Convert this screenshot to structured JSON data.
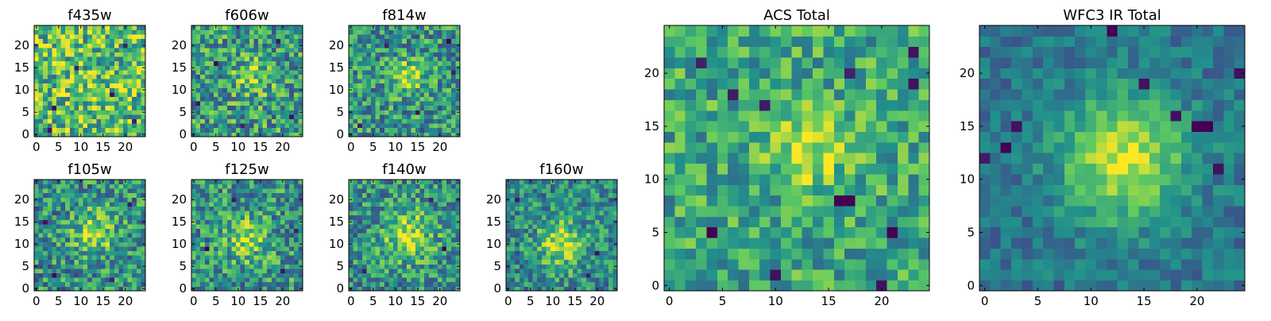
{
  "figure": {
    "colormap": "viridis",
    "colormap_stops": [
      "#440154",
      "#3b528b",
      "#21918c",
      "#5ec962",
      "#fde725"
    ],
    "image_size": [
      25,
      25
    ]
  },
  "chart_data": [
    {
      "type": "heatmap",
      "title": "f435w",
      "xlim": [
        0,
        24
      ],
      "ylim": [
        0,
        24
      ],
      "xticks": [
        0,
        5,
        10,
        15,
        20
      ],
      "yticks": [
        0,
        5,
        10,
        15,
        20
      ],
      "xtick_labels": [
        "0",
        "5",
        "10",
        "15",
        "20"
      ],
      "ytick_labels": [
        "0",
        "5",
        "10",
        "15",
        "20"
      ],
      "source": {
        "center": [
          12,
          12
        ],
        "sigma": 6.0,
        "peak": 0.05,
        "noise": 0.34,
        "base": 0.68,
        "seed": 11
      },
      "outliers": [
        [
          4,
          6,
          0.0
        ],
        [
          17,
          9,
          0.05
        ],
        [
          9,
          15,
          0.08
        ],
        [
          20,
          20,
          0.1
        ],
        [
          3,
          1,
          0.05
        ],
        [
          22,
          3,
          0.1
        ]
      ]
    },
    {
      "type": "heatmap",
      "title": "f606w",
      "xlim": [
        0,
        24
      ],
      "ylim": [
        0,
        24
      ],
      "xticks": [
        0,
        5,
        10,
        15,
        20
      ],
      "yticks": [
        0,
        5,
        10,
        15,
        20
      ],
      "xtick_labels": [
        "0",
        "5",
        "10",
        "15",
        "20"
      ],
      "ytick_labels": [
        "0",
        "5",
        "10",
        "15",
        "20"
      ],
      "source": {
        "center": [
          13,
          13
        ],
        "sigma": 2.8,
        "peak": 0.28,
        "noise": 0.32,
        "base": 0.55,
        "seed": 23
      },
      "outliers": [
        [
          5,
          16,
          0.0
        ],
        [
          22,
          4,
          0.05
        ],
        [
          1,
          7,
          0.05
        ],
        [
          11,
          2,
          0.1
        ],
        [
          19,
          21,
          0.08
        ]
      ]
    },
    {
      "type": "heatmap",
      "title": "f814w",
      "xlim": [
        0,
        24
      ],
      "ylim": [
        0,
        24
      ],
      "xticks": [
        0,
        5,
        10,
        15,
        20
      ],
      "yticks": [
        0,
        5,
        10,
        15,
        20
      ],
      "xtick_labels": [
        "0",
        "5",
        "10",
        "15",
        "20"
      ],
      "ytick_labels": [
        "0",
        "5",
        "10",
        "15",
        "20"
      ],
      "source": {
        "center": [
          13,
          13
        ],
        "sigma": 2.6,
        "peak": 0.38,
        "noise": 0.3,
        "base": 0.52,
        "seed": 37
      },
      "outliers": [
        [
          22,
          21,
          0.0
        ],
        [
          15,
          5,
          0.05
        ],
        [
          2,
          2,
          0.08
        ],
        [
          23,
          14,
          0.1
        ],
        [
          8,
          20,
          0.1
        ]
      ]
    },
    {
      "type": "heatmap",
      "title": "f105w",
      "xlim": [
        0,
        24
      ],
      "ylim": [
        0,
        24
      ],
      "xticks": [
        0,
        5,
        10,
        15,
        20
      ],
      "yticks": [
        0,
        5,
        10,
        15,
        20
      ],
      "xtick_labels": [
        "0",
        "5",
        "10",
        "15",
        "20"
      ],
      "ytick_labels": [
        "0",
        "5",
        "10",
        "15",
        "20"
      ],
      "source": {
        "center": [
          13,
          13
        ],
        "sigma": 3.4,
        "peak": 0.36,
        "noise": 0.3,
        "base": 0.5,
        "seed": 41
      },
      "outliers": [
        [
          4,
          3,
          0.0
        ],
        [
          2,
          15,
          0.05
        ],
        [
          21,
          19,
          0.08
        ],
        [
          17,
          2,
          0.1
        ]
      ]
    },
    {
      "type": "heatmap",
      "title": "f125w",
      "xlim": [
        0,
        24
      ],
      "ylim": [
        0,
        24
      ],
      "xticks": [
        0,
        5,
        10,
        15,
        20
      ],
      "yticks": [
        0,
        5,
        10,
        15,
        20
      ],
      "xtick_labels": [
        "0",
        "5",
        "10",
        "15",
        "20"
      ],
      "ytick_labels": [
        "0",
        "5",
        "10",
        "15",
        "20"
      ],
      "source": {
        "center": [
          12,
          11
        ],
        "sigma": 3.2,
        "peak": 0.34,
        "noise": 0.3,
        "base": 0.52,
        "seed": 53
      },
      "outliers": [
        [
          3,
          9,
          0.0
        ],
        [
          20,
          4,
          0.05
        ],
        [
          9,
          20,
          0.08
        ],
        [
          23,
          13,
          0.1
        ]
      ]
    },
    {
      "type": "heatmap",
      "title": "f140w",
      "xlim": [
        0,
        24
      ],
      "ylim": [
        0,
        24
      ],
      "xticks": [
        0,
        5,
        10,
        15,
        20
      ],
      "yticks": [
        0,
        5,
        10,
        15,
        20
      ],
      "xtick_labels": [
        "0",
        "5",
        "10",
        "15",
        "20"
      ],
      "ytick_labels": [
        "0",
        "5",
        "10",
        "15",
        "20"
      ],
      "source": {
        "center": [
          13,
          12
        ],
        "sigma": 4.0,
        "peak": 0.38,
        "noise": 0.28,
        "base": 0.5,
        "seed": 67
      },
      "outliers": [
        [
          21,
          9,
          0.0
        ],
        [
          3,
          4,
          0.08
        ],
        [
          18,
          20,
          0.1
        ]
      ]
    },
    {
      "type": "heatmap",
      "title": "f160w",
      "xlim": [
        0,
        24
      ],
      "ylim": [
        0,
        24
      ],
      "xticks": [
        0,
        5,
        10,
        15,
        20
      ],
      "yticks": [
        0,
        5,
        10,
        15,
        20
      ],
      "xtick_labels": [
        "0",
        "5",
        "10",
        "15",
        "20"
      ],
      "ytick_labels": [
        "0",
        "5",
        "10",
        "15",
        "20"
      ],
      "source": {
        "center": [
          12,
          10
        ],
        "sigma": 3.6,
        "peak": 0.42,
        "noise": 0.26,
        "base": 0.48,
        "seed": 79
      },
      "outliers": [
        [
          20,
          8,
          0.05
        ],
        [
          2,
          20,
          0.08
        ],
        [
          18,
          3,
          0.1
        ]
      ]
    },
    {
      "type": "heatmap",
      "title": "ACS Total",
      "xlim": [
        0,
        24
      ],
      "ylim": [
        0,
        24
      ],
      "xticks": [
        0,
        5,
        10,
        15,
        20
      ],
      "yticks": [
        0,
        5,
        10,
        15,
        20
      ],
      "xtick_labels": [
        "0",
        "5",
        "10",
        "15",
        "20"
      ],
      "ytick_labels": [
        "0",
        "5",
        "10",
        "15",
        "20"
      ],
      "source": {
        "center": [
          13,
          13
        ],
        "sigma": 2.6,
        "peak": 0.34,
        "noise": 0.24,
        "base": 0.6,
        "seed": 91
      },
      "outliers": [
        [
          16,
          8,
          0.0
        ],
        [
          17,
          8,
          0.0
        ],
        [
          4,
          5,
          0.0
        ],
        [
          10,
          1,
          0.05
        ],
        [
          21,
          5,
          0.0
        ],
        [
          20,
          0,
          0.05
        ],
        [
          6,
          18,
          0.08
        ],
        [
          9,
          17,
          0.08
        ],
        [
          23,
          19,
          0.05
        ],
        [
          23,
          22,
          0.05
        ],
        [
          3,
          21,
          0.1
        ],
        [
          17,
          20,
          0.1
        ]
      ]
    },
    {
      "type": "heatmap",
      "title": "WFC3 IR Total",
      "xlim": [
        0,
        24
      ],
      "ylim": [
        0,
        24
      ],
      "xticks": [
        0,
        5,
        10,
        15,
        20
      ],
      "yticks": [
        0,
        5,
        10,
        15,
        20
      ],
      "xtick_labels": [
        "0",
        "5",
        "10",
        "15",
        "20"
      ],
      "ytick_labels": [
        "0",
        "5",
        "10",
        "15",
        "20"
      ],
      "source": {
        "center": [
          13,
          12
        ],
        "sigma": 4.2,
        "peak": 0.55,
        "noise": 0.14,
        "base": 0.38,
        "seed": 103
      },
      "outliers": [
        [
          2,
          13,
          0.0
        ],
        [
          3,
          15,
          0.05
        ],
        [
          12,
          24,
          0.0
        ],
        [
          20,
          15,
          0.0
        ],
        [
          21,
          15,
          0.0
        ],
        [
          18,
          16,
          0.05
        ],
        [
          22,
          11,
          0.05
        ],
        [
          24,
          20,
          0.05
        ],
        [
          15,
          19,
          0.05
        ],
        [
          0,
          12,
          0.08
        ]
      ]
    }
  ]
}
